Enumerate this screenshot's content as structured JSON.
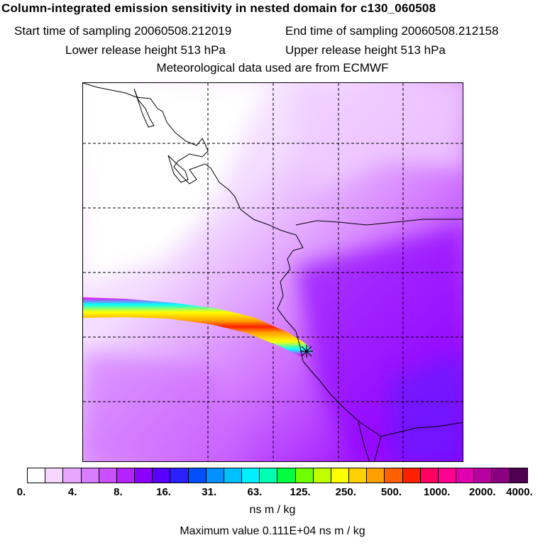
{
  "header": {
    "title": "Column-integrated emission sensitivity in nested domain for c130_060508",
    "start_label": "Start time of sampling 20060508.212019",
    "end_label": "End time of sampling 20060508.212158",
    "lower_label": "Lower release height  513 hPa",
    "upper_label": "Upper release height  513 hPa",
    "met_label": "Meteorological data used are from ECMWF"
  },
  "map": {
    "release_marker_icon": "cross-star-icon",
    "plume_colors": [
      "#ff00ff",
      "#ffff00",
      "#00ffff",
      "#ff0000",
      "#ffa000"
    ]
  },
  "colorbar": {
    "colors": [
      "#ffffff",
      "#f5d6ff",
      "#e9a6ff",
      "#d97dff",
      "#c94fff",
      "#b423ff",
      "#8c00ff",
      "#5a00ff",
      "#2c20ff",
      "#0050ff",
      "#0090ff",
      "#00c0ff",
      "#00f0ff",
      "#00ffb0",
      "#00ff40",
      "#70ff00",
      "#c0ff00",
      "#ffff00",
      "#ffd000",
      "#ffa000",
      "#ff6000",
      "#ff2000",
      "#ff0060",
      "#ff0090",
      "#e000b0",
      "#b800a0",
      "#8a0080",
      "#500050"
    ],
    "tick_labels": [
      "0.",
      "4.",
      "8.",
      "16.",
      "31.",
      "63.",
      "125.",
      "250.",
      "500.",
      "1000.",
      "2000.",
      "4000."
    ],
    "unit": "ns m / kg"
  },
  "footer": {
    "max_value": "Maximum value  0.111E+04 ns m / kg"
  }
}
